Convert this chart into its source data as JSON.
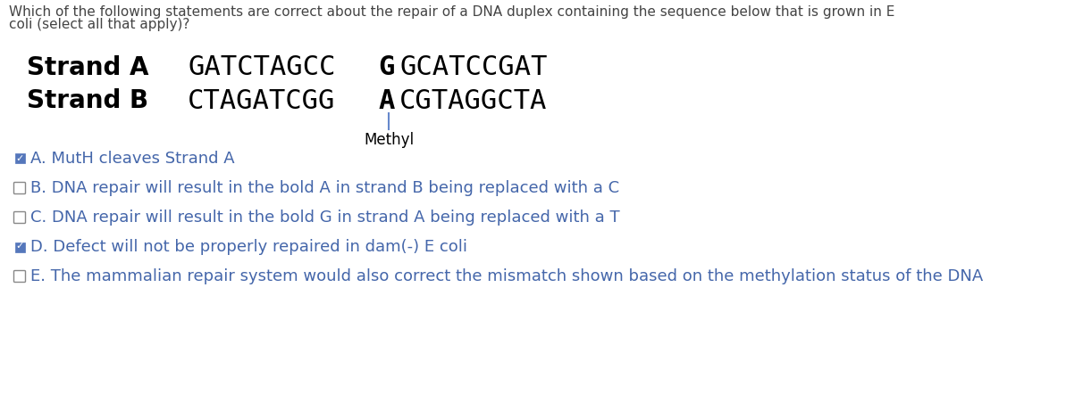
{
  "title_line1": "Which of the following statements are correct about the repair of a DNA duplex containing the sequence below that is grown in E",
  "title_line2": "coli (select all that apply)?",
  "strand_a_label": "Strand A",
  "strand_b_label": "Strand B",
  "strand_a_prefix": "GATCTAGCC",
  "strand_a_bold": "G",
  "strand_a_suffix": "GCATCCGAT",
  "strand_b_prefix": "CTAGATCGG",
  "strand_b_bold": "A",
  "strand_b_suffix": "CGTAGGCTA",
  "methyl_label": "Methyl",
  "methyl_line_color": "#6688cc",
  "options": [
    {
      "letter": "A",
      "text": "MutH cleaves Strand A",
      "checked": true
    },
    {
      "letter": "B",
      "text": "DNA repair will result in the bold A in strand B being replaced with a C",
      "checked": false
    },
    {
      "letter": "C",
      "text": "DNA repair will result in the bold G in strand A being replaced with a T",
      "checked": false
    },
    {
      "letter": "D",
      "text": "Defect will not be properly repaired in dam(-) E coli",
      "checked": true
    },
    {
      "letter": "E",
      "text": "The mammalian repair system would also correct the mismatch shown based on the methylation status of the DNA",
      "checked": false
    }
  ],
  "bg_color": "#ffffff",
  "text_color": "#000000",
  "option_text_color": "#4466aa",
  "checked_color": "#4466aa",
  "header_color": "#444444",
  "sequence_font_size": 22,
  "label_font_size": 20,
  "option_font_size": 13,
  "header_font_size": 11,
  "methyl_font_size": 12,
  "checkbox_color_checked": "#5577bb",
  "checkbox_color_unchecked": "#888888"
}
